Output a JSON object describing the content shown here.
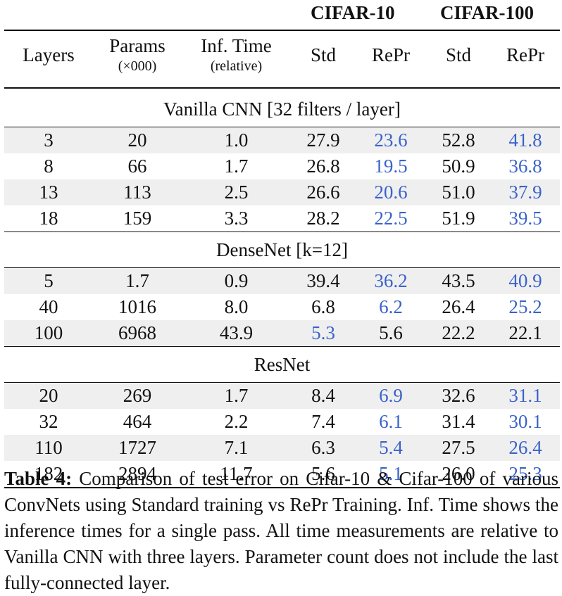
{
  "groups": [
    "CIFAR-10",
    "CIFAR-100"
  ],
  "headers": {
    "layers": "Layers",
    "params": "Params",
    "params_unit": "(×000)",
    "inf_time": "Inf. Time",
    "inf_time_unit": "(relative)",
    "std": "Std",
    "repr": "RePr"
  },
  "sections": [
    {
      "title": "Vanilla CNN [32 filters / layer]",
      "rows": [
        {
          "layers": "3",
          "params": "20",
          "inf": "1.0",
          "c10_std": "27.9",
          "c10_repr": "23.6",
          "c100_std": "52.8",
          "c100_repr": "41.8",
          "shaded": true
        },
        {
          "layers": "8",
          "params": "66",
          "inf": "1.7",
          "c10_std": "26.8",
          "c10_repr": "19.5",
          "c100_std": "50.9",
          "c100_repr": "36.8",
          "shaded": false
        },
        {
          "layers": "13",
          "params": "113",
          "inf": "2.5",
          "c10_std": "26.6",
          "c10_repr": "20.6",
          "c100_std": "51.0",
          "c100_repr": "37.9",
          "shaded": true
        },
        {
          "layers": "18",
          "params": "159",
          "inf": "3.3",
          "c10_std": "28.2",
          "c10_repr": "22.5",
          "c100_std": "51.9",
          "c100_repr": "39.5",
          "shaded": false
        }
      ]
    },
    {
      "title": "DenseNet [k=12]",
      "rows": [
        {
          "layers": "5",
          "params": "1.7",
          "inf": "0.9",
          "c10_std": "39.4",
          "c10_repr": "36.2",
          "c100_std": "43.5",
          "c100_repr": "40.9",
          "shaded": true
        },
        {
          "layers": "40",
          "params": "1016",
          "inf": "8.0",
          "c10_std": "6.8",
          "c10_repr": "6.2",
          "c100_std": "26.4",
          "c100_repr": "25.2",
          "shaded": false
        },
        {
          "layers": "100",
          "params": "6968",
          "inf": "43.9",
          "c10_std": "5.3",
          "c10_repr": "5.6",
          "c100_std": "22.2",
          "c100_repr": "22.1",
          "shaded": true,
          "blue_std10": true
        }
      ]
    },
    {
      "title": "ResNet",
      "rows": [
        {
          "layers": "20",
          "params": "269",
          "inf": "1.7",
          "c10_std": "8.4",
          "c10_repr": "6.9",
          "c100_std": "32.6",
          "c100_repr": "31.1",
          "shaded": true
        },
        {
          "layers": "32",
          "params": "464",
          "inf": "2.2",
          "c10_std": "7.4",
          "c10_repr": "6.1",
          "c100_std": "31.4",
          "c100_repr": "30.1",
          "shaded": false
        },
        {
          "layers": "110",
          "params": "1727",
          "inf": "7.1",
          "c10_std": "6.3",
          "c10_repr": "5.4",
          "c100_std": "27.5",
          "c100_repr": "26.4",
          "shaded": true
        },
        {
          "layers": "182",
          "params": "2894",
          "inf": "11.7",
          "c10_std": "5.6",
          "c10_repr": "5.1",
          "c100_std": "26.0",
          "c100_repr": "25.3",
          "shaded": false
        }
      ]
    }
  ],
  "caption": {
    "label": "Table 4:",
    "text": " Comparison of test error on Cifar-10 & Cifar-100 of vari­ous ConvNets using Standard training vs RePr Training. Inf. Time shows the inference times for a single pass.  All time measure­ments are relative to Vanilla CNN with three layers.  Parameter count does not include the last fully-connected layer."
  },
  "colors": {
    "highlight": "#3a63c9",
    "shade": "#efefef"
  }
}
